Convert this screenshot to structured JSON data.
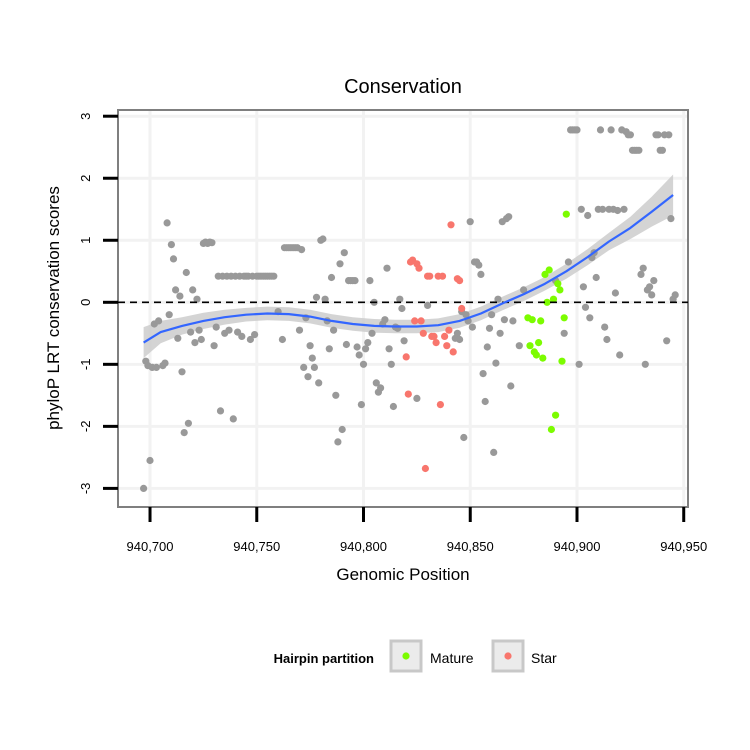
{
  "chart_data": {
    "type": "scatter",
    "title": "Conservation",
    "xlabel": "Genomic Position",
    "ylabel": "phyloP LRT conservation scores",
    "xlim": [
      940685,
      940952
    ],
    "ylim": [
      -3.3,
      3.1
    ],
    "xticks": [
      940700,
      940750,
      940800,
      940850,
      940900,
      940950
    ],
    "xtick_labels": [
      "940,700",
      "940,750",
      "940,800",
      "940,850",
      "940,900",
      "940,950"
    ],
    "yticks": [
      -3,
      -2,
      -1,
      0,
      1,
      2,
      3
    ],
    "ytick_labels": [
      "-3",
      "-2",
      "-1",
      "0",
      "1",
      "2",
      "3"
    ],
    "reference_line": {
      "y": 0,
      "style": "dashed"
    },
    "legend": {
      "title": "Hairpin partition",
      "position": "bottom",
      "entries": [
        {
          "label": "Mature",
          "color": "#7CFC00"
        },
        {
          "label": "Star",
          "color": "#F8766D"
        }
      ]
    },
    "colors": {
      "other": "#999999",
      "mature": "#7CFC00",
      "star": "#F8766D",
      "smooth": "#3366FF",
      "band": "#CCCCCC"
    },
    "series": [
      {
        "name": "Other",
        "points": [
          [
            940697,
            -3.0
          ],
          [
            940698,
            -0.95
          ],
          [
            940699,
            -1.02
          ],
          [
            940700,
            -2.55
          ],
          [
            940701,
            -1.05
          ],
          [
            940702,
            -0.35
          ],
          [
            940703,
            -1.05
          ],
          [
            940704,
            -0.3
          ],
          [
            940706,
            -1.02
          ],
          [
            940707,
            -0.98
          ],
          [
            940708,
            1.28
          ],
          [
            940709,
            -0.2
          ],
          [
            940710,
            0.93
          ],
          [
            940711,
            0.7
          ],
          [
            940712,
            0.2
          ],
          [
            940713,
            -0.58
          ],
          [
            940714,
            0.1
          ],
          [
            940715,
            -1.12
          ],
          [
            940716,
            -2.1
          ],
          [
            940717,
            0.48
          ],
          [
            940718,
            -1.95
          ],
          [
            940719,
            -0.48
          ],
          [
            940720,
            0.2
          ],
          [
            940721,
            -0.65
          ],
          [
            940722,
            0.05
          ],
          [
            940723,
            -0.45
          ],
          [
            940724,
            -0.6
          ],
          [
            940725,
            0.95
          ],
          [
            940726,
            0.97
          ],
          [
            940727,
            0.95
          ],
          [
            940728,
            0.97
          ],
          [
            940729,
            0.96
          ],
          [
            940730,
            -0.7
          ],
          [
            940731,
            -0.4
          ],
          [
            940732,
            0.42
          ],
          [
            940733,
            -1.75
          ],
          [
            940734,
            0.42
          ],
          [
            940735,
            -0.5
          ],
          [
            940736,
            0.42
          ],
          [
            940737,
            -0.45
          ],
          [
            940738,
            0.42
          ],
          [
            940739,
            -1.88
          ],
          [
            940740,
            0.42
          ],
          [
            940741,
            -0.48
          ],
          [
            940742,
            0.42
          ],
          [
            940743,
            -0.55
          ],
          [
            940744,
            0.42
          ],
          [
            940745,
            0.42
          ],
          [
            940746,
            0.42
          ],
          [
            940747,
            -0.6
          ],
          [
            940748,
            0.42
          ],
          [
            940749,
            -0.52
          ],
          [
            940750,
            0.42
          ],
          [
            940751,
            0.42
          ],
          [
            940752,
            0.42
          ],
          [
            940753,
            0.42
          ],
          [
            940754,
            0.42
          ],
          [
            940755,
            0.42
          ],
          [
            940756,
            0.42
          ],
          [
            940757,
            0.42
          ],
          [
            940758,
            0.42
          ],
          [
            940760,
            -0.15
          ],
          [
            940762,
            -0.6
          ],
          [
            940763,
            0.88
          ],
          [
            940764,
            0.88
          ],
          [
            940765,
            0.88
          ],
          [
            940766,
            0.88
          ],
          [
            940767,
            0.88
          ],
          [
            940768,
            0.88
          ],
          [
            940769,
            0.88
          ],
          [
            940770,
            -0.45
          ],
          [
            940771,
            0.85
          ],
          [
            940772,
            -1.05
          ],
          [
            940773,
            -0.25
          ],
          [
            940774,
            -1.2
          ],
          [
            940775,
            -0.7
          ],
          [
            940776,
            -0.9
          ],
          [
            940777,
            -1.05
          ],
          [
            940778,
            0.08
          ],
          [
            940779,
            -1.3
          ],
          [
            940780,
            1.0
          ],
          [
            940781,
            1.02
          ],
          [
            940782,
            0.05
          ],
          [
            940783,
            -0.3
          ],
          [
            940784,
            -0.75
          ],
          [
            940785,
            0.4
          ],
          [
            940786,
            -0.45
          ],
          [
            940787,
            -1.5
          ],
          [
            940788,
            -2.25
          ],
          [
            940789,
            0.62
          ],
          [
            940790,
            -2.05
          ],
          [
            940791,
            0.8
          ],
          [
            940792,
            -0.68
          ],
          [
            940793,
            0.35
          ],
          [
            940794,
            0.35
          ],
          [
            940795,
            0.35
          ],
          [
            940796,
            0.35
          ],
          [
            940797,
            -0.72
          ],
          [
            940798,
            -0.85
          ],
          [
            940799,
            -1.65
          ],
          [
            940800,
            -1.0
          ],
          [
            940801,
            -0.75
          ],
          [
            940802,
            -0.65
          ],
          [
            940803,
            0.35
          ],
          [
            940804,
            -0.5
          ],
          [
            940805,
            0.0
          ],
          [
            940806,
            -1.3
          ],
          [
            940807,
            -1.45
          ],
          [
            940808,
            -1.38
          ],
          [
            940809,
            -0.35
          ],
          [
            940810,
            -0.28
          ],
          [
            940811,
            0.55
          ],
          [
            940812,
            -0.75
          ],
          [
            940813,
            -1.0
          ],
          [
            940814,
            -1.68
          ],
          [
            940815,
            -0.4
          ],
          [
            940816,
            -0.42
          ],
          [
            940817,
            0.05
          ],
          [
            940818,
            -0.1
          ],
          [
            940819,
            -0.62
          ],
          [
            940825,
            -1.55
          ],
          [
            940830,
            -0.05
          ],
          [
            940843,
            -0.58
          ],
          [
            940844,
            -0.5
          ],
          [
            940845,
            -0.6
          ],
          [
            940846,
            -0.15
          ],
          [
            940847,
            -2.18
          ],
          [
            940848,
            -0.2
          ],
          [
            940849,
            -0.3
          ],
          [
            940850,
            1.3
          ],
          [
            940851,
            -0.4
          ],
          [
            940852,
            0.65
          ],
          [
            940853,
            0.65
          ],
          [
            940854,
            0.6
          ],
          [
            940855,
            0.45
          ],
          [
            940856,
            -1.15
          ],
          [
            940857,
            -1.6
          ],
          [
            940858,
            -0.72
          ],
          [
            940859,
            -0.42
          ],
          [
            940860,
            -0.2
          ],
          [
            940861,
            -2.42
          ],
          [
            940862,
            -0.98
          ],
          [
            940863,
            0.05
          ],
          [
            940864,
            -0.5
          ],
          [
            940865,
            1.3
          ],
          [
            940866,
            -0.28
          ],
          [
            940867,
            1.35
          ],
          [
            940868,
            1.38
          ],
          [
            940869,
            -1.35
          ],
          [
            940870,
            -0.3
          ],
          [
            940873,
            -0.7
          ],
          [
            940875,
            0.2
          ],
          [
            940890,
            0.35
          ],
          [
            940894,
            -0.5
          ],
          [
            940896,
            0.65
          ],
          [
            940897,
            2.78
          ],
          [
            940898,
            2.78
          ],
          [
            940899,
            2.78
          ],
          [
            940900,
            2.78
          ],
          [
            940901,
            -1.0
          ],
          [
            940902,
            1.5
          ],
          [
            940903,
            0.25
          ],
          [
            940904,
            -0.08
          ],
          [
            940905,
            1.4
          ],
          [
            940906,
            -0.25
          ],
          [
            940907,
            0.72
          ],
          [
            940908,
            0.8
          ],
          [
            940909,
            0.4
          ],
          [
            940910,
            1.5
          ],
          [
            940911,
            2.78
          ],
          [
            940912,
            1.5
          ],
          [
            940913,
            -0.4
          ],
          [
            940914,
            -0.6
          ],
          [
            940915,
            1.5
          ],
          [
            940916,
            2.78
          ],
          [
            940917,
            1.5
          ],
          [
            940918,
            0.15
          ],
          [
            940919,
            1.48
          ],
          [
            940920,
            -0.85
          ],
          [
            940921,
            2.78
          ],
          [
            940922,
            1.5
          ],
          [
            940923,
            2.75
          ],
          [
            940924,
            2.7
          ],
          [
            940925,
            2.7
          ],
          [
            940926,
            2.45
          ],
          [
            940927,
            2.45
          ],
          [
            940928,
            2.45
          ],
          [
            940929,
            2.45
          ],
          [
            940930,
            0.45
          ],
          [
            940931,
            0.55
          ],
          [
            940932,
            -1.0
          ],
          [
            940933,
            0.2
          ],
          [
            940934,
            0.25
          ],
          [
            940935,
            0.12
          ],
          [
            940936,
            0.35
          ],
          [
            940937,
            2.7
          ],
          [
            940938,
            2.7
          ],
          [
            940939,
            2.45
          ],
          [
            940940,
            2.45
          ],
          [
            940941,
            2.7
          ],
          [
            940942,
            -0.62
          ],
          [
            940943,
            2.7
          ],
          [
            940944,
            1.35
          ],
          [
            940945,
            0.05
          ],
          [
            940946,
            0.12
          ]
        ]
      },
      {
        "name": "Star",
        "points": [
          [
            940820,
            -0.88
          ],
          [
            940821,
            -1.48
          ],
          [
            940822,
            0.65
          ],
          [
            940823,
            0.68
          ],
          [
            940824,
            -0.3
          ],
          [
            940825,
            0.62
          ],
          [
            940826,
            0.55
          ],
          [
            940827,
            -0.3
          ],
          [
            940828,
            -0.5
          ],
          [
            940829,
            -2.68
          ],
          [
            940830,
            0.42
          ],
          [
            940831,
            0.42
          ],
          [
            940832,
            -0.55
          ],
          [
            940833,
            -0.55
          ],
          [
            940834,
            -0.65
          ],
          [
            940835,
            0.42
          ],
          [
            940836,
            -1.65
          ],
          [
            940837,
            0.42
          ],
          [
            940838,
            -0.55
          ],
          [
            940839,
            -0.7
          ],
          [
            940840,
            -0.45
          ],
          [
            940841,
            1.25
          ],
          [
            940842,
            -0.8
          ],
          [
            940844,
            0.38
          ],
          [
            940845,
            0.35
          ],
          [
            940846,
            -0.1
          ]
        ]
      },
      {
        "name": "Mature",
        "points": [
          [
            940877,
            -0.25
          ],
          [
            940878,
            -0.7
          ],
          [
            940879,
            -0.28
          ],
          [
            940880,
            -0.8
          ],
          [
            940881,
            -0.85
          ],
          [
            940882,
            -0.65
          ],
          [
            940883,
            -0.3
          ],
          [
            940884,
            -0.9
          ],
          [
            940885,
            0.45
          ],
          [
            940886,
            0.0
          ],
          [
            940887,
            0.52
          ],
          [
            940888,
            -2.05
          ],
          [
            940889,
            0.05
          ],
          [
            940890,
            -1.82
          ],
          [
            940891,
            0.3
          ],
          [
            940892,
            0.2
          ],
          [
            940893,
            -0.95
          ],
          [
            940894,
            -0.25
          ],
          [
            940895,
            1.42
          ]
        ]
      }
    ],
    "smooth_fit": {
      "x": [
        940697,
        940705,
        940715,
        940725,
        940735,
        940745,
        940755,
        940765,
        940775,
        940785,
        940795,
        940805,
        940815,
        940825,
        940835,
        940845,
        940855,
        940865,
        940875,
        940885,
        940895,
        940905,
        940915,
        940925,
        940935,
        940945
      ],
      "y": [
        -0.65,
        -0.48,
        -0.38,
        -0.3,
        -0.24,
        -0.2,
        -0.18,
        -0.19,
        -0.23,
        -0.3,
        -0.35,
        -0.38,
        -0.39,
        -0.39,
        -0.37,
        -0.3,
        -0.18,
        -0.02,
        0.13,
        0.3,
        0.5,
        0.73,
        0.98,
        1.2,
        1.46,
        1.73
      ],
      "lower": [
        -0.9,
        -0.66,
        -0.52,
        -0.43,
        -0.36,
        -0.31,
        -0.29,
        -0.3,
        -0.34,
        -0.41,
        -0.46,
        -0.49,
        -0.5,
        -0.5,
        -0.48,
        -0.41,
        -0.29,
        -0.13,
        0.02,
        0.19,
        0.38,
        0.6,
        0.84,
        1.02,
        1.22,
        1.4
      ],
      "upper": [
        -0.4,
        -0.3,
        -0.24,
        -0.17,
        -0.12,
        -0.09,
        -0.07,
        -0.08,
        -0.12,
        -0.19,
        -0.24,
        -0.27,
        -0.28,
        -0.28,
        -0.26,
        -0.19,
        -0.07,
        0.09,
        0.24,
        0.41,
        0.62,
        0.86,
        1.12,
        1.38,
        1.7,
        2.06
      ]
    }
  }
}
